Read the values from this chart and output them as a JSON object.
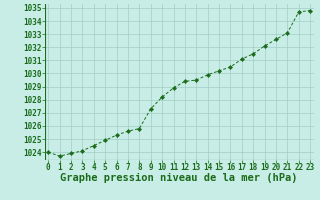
{
  "x": [
    0,
    1,
    2,
    3,
    4,
    5,
    6,
    7,
    8,
    9,
    10,
    11,
    12,
    13,
    14,
    15,
    16,
    17,
    18,
    19,
    20,
    21,
    22,
    23
  ],
  "y": [
    1024.0,
    1023.7,
    1023.9,
    1024.1,
    1024.5,
    1024.9,
    1025.3,
    1025.6,
    1025.8,
    1027.3,
    1028.2,
    1028.9,
    1029.4,
    1029.5,
    1029.9,
    1030.2,
    1030.5,
    1031.1,
    1031.5,
    1032.1,
    1032.6,
    1033.1,
    1034.7,
    1034.8
  ],
  "line_color": "#1a6b1a",
  "marker_color": "#1a6b1a",
  "bg_color": "#c8ede6",
  "grid_color": "#a0ccc4",
  "text_color": "#1a6b1a",
  "xlabel": "Graphe pression niveau de la mer (hPa)",
  "ylim": [
    1023.4,
    1035.3
  ],
  "yticks": [
    1024,
    1025,
    1026,
    1027,
    1028,
    1029,
    1030,
    1031,
    1032,
    1033,
    1034,
    1035
  ],
  "xticks": [
    0,
    1,
    2,
    3,
    4,
    5,
    6,
    7,
    8,
    9,
    10,
    11,
    12,
    13,
    14,
    15,
    16,
    17,
    18,
    19,
    20,
    21,
    22,
    23
  ],
  "tick_fontsize": 5.5,
  "xlabel_fontsize": 7.5
}
